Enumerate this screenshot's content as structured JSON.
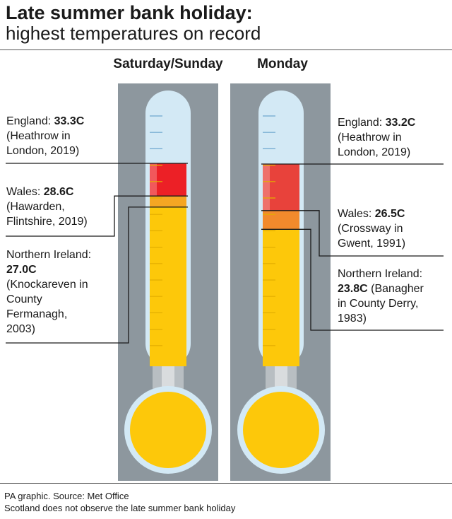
{
  "title": "Late summer bank holiday:",
  "subtitle": "highest temperatures on record",
  "footer": {
    "source": "PA graphic. Source: Met Office",
    "note": "Scotland does not observe the late summer bank holiday"
  },
  "colors": {
    "panel": "#8d979e",
    "tube": "#d3e9f5",
    "mercury": "#fdc80a",
    "england_sat": "#ec2026",
    "england_mon": "#e8423b",
    "wales": "#f28a2c",
    "ni_sat": "#f5a623",
    "neck": "#b8bec2"
  },
  "chart_data": {
    "type": "thermometer",
    "title": "Late summer bank holiday:",
    "subtitle": "highest temperatures on record",
    "panels": [
      {
        "name": "Saturday/Sunday",
        "records": [
          {
            "region": "England",
            "value": 33.3,
            "value_text": "33.3C",
            "detail_lines": [
              "(Heathrow in",
              "London, 2019)"
            ]
          },
          {
            "region": "Wales",
            "value": 28.6,
            "value_text": "28.6C",
            "detail_lines": [
              "(Hawarden,",
              "Flintshire, 2019)"
            ]
          },
          {
            "region": "Northern Ireland",
            "value": 27.0,
            "value_text": "27.0C",
            "detail_lines": [
              "(Knockareven in",
              "County",
              "Fermanagh,",
              "2003)"
            ]
          }
        ]
      },
      {
        "name": "Monday",
        "records": [
          {
            "region": "England",
            "value": 33.2,
            "value_text": "33.2C",
            "detail_lines": [
              "(Heathrow in",
              "London, 2019)"
            ]
          },
          {
            "region": "Wales",
            "value": 26.5,
            "value_text": "26.5C",
            "detail_lines": [
              "(Crossway in",
              "Gwent, 1991)"
            ]
          },
          {
            "region": "Northern Ireland",
            "value": 23.8,
            "value_text": "23.8C",
            "detail_lines": [
              "(Banagher",
              "in County Derry,",
              "1983)"
            ]
          }
        ]
      }
    ]
  }
}
